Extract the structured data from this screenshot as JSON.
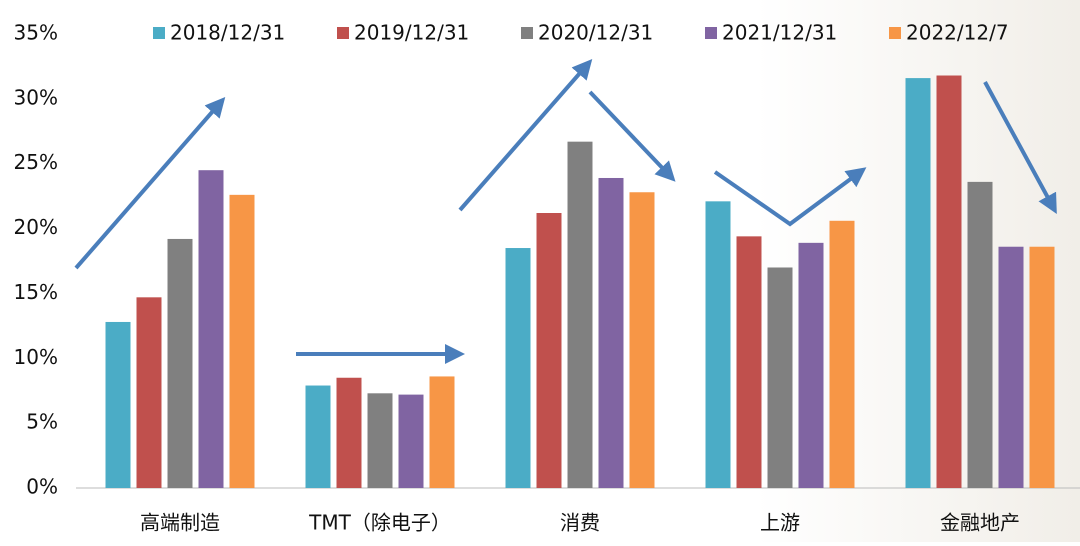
{
  "chart_data": {
    "type": "bar",
    "categories": [
      "高端制造",
      "TMT（除电子）",
      "消费",
      "上游",
      "金融地产"
    ],
    "series": [
      {
        "name": "2018/12/31",
        "color": "#4bacc6",
        "values": [
          12.8,
          7.9,
          18.5,
          22.1,
          31.6
        ]
      },
      {
        "name": "2019/12/31",
        "color": "#c0504d",
        "values": [
          14.7,
          8.5,
          21.2,
          19.4,
          31.8
        ]
      },
      {
        "name": "2020/12/31",
        "color": "#808080",
        "values": [
          19.2,
          7.3,
          26.7,
          17.0,
          23.6
        ]
      },
      {
        "name": "2021/12/31",
        "color": "#8064a2",
        "values": [
          24.5,
          7.2,
          23.9,
          18.9,
          18.6
        ]
      },
      {
        "name": "2022/12/7",
        "color": "#f79646",
        "values": [
          22.6,
          8.6,
          22.8,
          20.6,
          18.6
        ]
      }
    ],
    "ylim": [
      0,
      35
    ],
    "yticks": [
      {
        "value": 0,
        "label": "0%"
      },
      {
        "value": 5,
        "label": "5%"
      },
      {
        "value": 10,
        "label": "10%"
      },
      {
        "value": 15,
        "label": "15%"
      },
      {
        "value": 20,
        "label": "20%"
      },
      {
        "value": 25,
        "label": "25%"
      },
      {
        "value": 30,
        "label": "30%"
      },
      {
        "value": 35,
        "label": "35%"
      }
    ],
    "grid": false
  }
}
